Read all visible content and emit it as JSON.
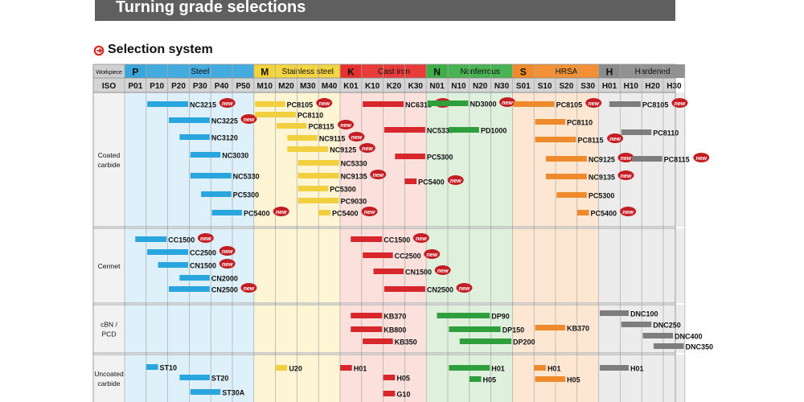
{
  "page": {
    "title": "Turning grade selections",
    "section_title": "Selection system",
    "workpiece_label": "Workpiece",
    "iso_label": "ISO"
  },
  "groups": [
    {
      "letter": "P",
      "name": "Steel",
      "color": "#3aa7dc",
      "light": "#def1fa",
      "codes": [
        "P01",
        "P10",
        "P20",
        "P30",
        "P40",
        "P50"
      ]
    },
    {
      "letter": "M",
      "name": "Stainless steel",
      "color": "#f3d33a",
      "light": "#fdf5d4",
      "codes": [
        "M10",
        "M20",
        "M30",
        "M40"
      ]
    },
    {
      "letter": "K",
      "name": "Cast iron",
      "color": "#e7312f",
      "light": "#fbe0db",
      "codes": [
        "K01",
        "K10",
        "K20",
        "K30"
      ]
    },
    {
      "letter": "N",
      "name": "Nonferrous",
      "color": "#3fae49",
      "light": "#dff0dd",
      "codes": [
        "N01",
        "N10",
        "N20",
        "N30"
      ]
    },
    {
      "letter": "S",
      "name": "HRSA",
      "color": "#f08a2b",
      "light": "#fde7d2",
      "codes": [
        "S01",
        "S10",
        "S20",
        "S30"
      ]
    },
    {
      "letter": "H",
      "name": "Hardened",
      "color": "#8c8c8c",
      "light": "#ececec",
      "codes": [
        "H01",
        "H10",
        "H20",
        "H30"
      ]
    }
  ],
  "categories": [
    {
      "name": "Coated carbide",
      "lines": [
        "Coated",
        "carbide"
      ]
    },
    {
      "name": "Cermet",
      "lines": [
        "Cermet"
      ]
    },
    {
      "name": "cBN / PCD",
      "lines": [
        "cBN /",
        "PCD"
      ]
    },
    {
      "name": "Uncoated carbide",
      "lines": [
        "Uncoated",
        "carbide"
      ]
    }
  ],
  "new_badge": "new",
  "bar_colors": {
    "P": "#2aa6df",
    "M": "#f2cf3e",
    "K": "#d7262c",
    "N": "#2e9f3c",
    "S": "#ef8a2c",
    "H": "#7d7d7d"
  },
  "grades": [
    {
      "group": "P",
      "name": "NC3215",
      "from": "P10",
      "to": "P20",
      "new": true
    },
    {
      "group": "P",
      "name": "NC3225",
      "from": "P20",
      "to": "P30",
      "new": true
    },
    {
      "group": "P",
      "name": "NC3120",
      "from": "P25",
      "to": "P30",
      "new": false
    },
    {
      "group": "P",
      "name": "NC3030",
      "from": "P30",
      "to": "P35",
      "new": false
    },
    {
      "group": "P",
      "name": "NC5330",
      "from": "P30",
      "to": "P40",
      "new": false
    },
    {
      "group": "P",
      "name": "PC5300",
      "from": "P35",
      "to": "P40",
      "new": false
    },
    {
      "group": "P",
      "name": "PC5400",
      "from": "P40",
      "to": "P45",
      "new": true
    },
    {
      "group": "M",
      "name": "PC8105",
      "from": "M10",
      "to": "M15",
      "new": true
    },
    {
      "group": "M",
      "name": "PC8110",
      "from": "M10",
      "to": "M20",
      "new": false
    },
    {
      "group": "M",
      "name": "PC8115",
      "from": "M20",
      "to": "M25",
      "new": true
    },
    {
      "group": "M",
      "name": "NC9115",
      "from": "M25",
      "to": "M30",
      "new": true
    },
    {
      "group": "M",
      "name": "NC9125",
      "from": "M25",
      "to": "M35",
      "new": true
    },
    {
      "group": "M",
      "name": "NC5330",
      "from": "M30",
      "to": "M40",
      "new": false
    },
    {
      "group": "M",
      "name": "NC9135",
      "from": "M30",
      "to": "M40",
      "new": true
    },
    {
      "group": "M",
      "name": "PC5300",
      "from": "M30",
      "to": "M35",
      "new": false
    },
    {
      "group": "M",
      "name": "PC9030",
      "from": "M30",
      "to": "M40",
      "new": false
    },
    {
      "group": "M",
      "name": "PC5400",
      "from": "M40",
      "to": "M40",
      "new": true
    },
    {
      "group": "K",
      "name": "NC6315",
      "from": "K10",
      "to": "K20",
      "new": true
    },
    {
      "group": "K",
      "name": "NC5330",
      "from": "K20",
      "to": "K30",
      "new": false
    },
    {
      "group": "K",
      "name": "PC5300",
      "from": "K25",
      "to": "K30",
      "new": false
    },
    {
      "group": "K",
      "name": "PC5400",
      "from": "K30",
      "to": "K30",
      "new": true
    },
    {
      "group": "N",
      "name": "ND3000",
      "from": "N01",
      "to": "N10",
      "new": true
    },
    {
      "group": "N",
      "name": "PD1000",
      "from": "N10",
      "to": "N15",
      "new": false
    },
    {
      "group": "S",
      "name": "PC8105",
      "from": "S01",
      "to": "S10",
      "new": true
    },
    {
      "group": "S",
      "name": "PC8110",
      "from": "S10",
      "to": "S15",
      "new": false
    },
    {
      "group": "S",
      "name": "PC8115",
      "from": "S10",
      "to": "S20",
      "new": true
    },
    {
      "group": "S",
      "name": "NC9125",
      "from": "S15",
      "to": "S25",
      "new": true
    },
    {
      "group": "S",
      "name": "NC9135",
      "from": "S15",
      "to": "S25",
      "new": true
    },
    {
      "group": "S",
      "name": "PC5300",
      "from": "S20",
      "to": "S25",
      "new": false
    },
    {
      "group": "S",
      "name": "PC5400",
      "from": "S30",
      "to": "S30",
      "new": true
    },
    {
      "group": "H",
      "name": "PC8105",
      "from": "H05",
      "to": "H10",
      "new": true
    },
    {
      "group": "H",
      "name": "PC8110",
      "from": "H10",
      "to": "H15",
      "new": false
    },
    {
      "group": "H",
      "name": "PC8115",
      "from": "H15",
      "to": "H20",
      "new": true
    },
    {
      "group": "P",
      "name": "CC1500",
      "from": "P05",
      "to": "P10",
      "new": true
    },
    {
      "group": "P",
      "name": "CC2500",
      "from": "P10",
      "to": "P20",
      "new": true
    },
    {
      "group": "P",
      "name": "CN1500",
      "from": "P15",
      "to": "P20",
      "new": true
    },
    {
      "group": "P",
      "name": "CN2000",
      "from": "P25",
      "to": "P30",
      "new": false
    },
    {
      "group": "P",
      "name": "CN2500",
      "from": "P20",
      "to": "P30",
      "new": true
    },
    {
      "group": "K",
      "name": "CC1500",
      "from": "K05",
      "to": "K10",
      "new": true
    },
    {
      "group": "K",
      "name": "CC2500",
      "from": "K10",
      "to": "K15",
      "new": true
    },
    {
      "group": "K",
      "name": "CN1500",
      "from": "K15",
      "to": "K20",
      "new": true
    },
    {
      "group": "K",
      "name": "CN2500",
      "from": "K20",
      "to": "K30",
      "new": true
    },
    {
      "group": "K",
      "name": "KB370",
      "from": "K05",
      "to": "K10",
      "new": false
    },
    {
      "group": "K",
      "name": "KB800",
      "from": "K05",
      "to": "K10",
      "new": false
    },
    {
      "group": "K",
      "name": "KB350",
      "from": "K10",
      "to": "K15",
      "new": false
    },
    {
      "group": "N",
      "name": "DP90",
      "from": "N05",
      "to": "N20",
      "new": false
    },
    {
      "group": "N",
      "name": "DP150",
      "from": "N10",
      "to": "N25",
      "new": false
    },
    {
      "group": "N",
      "name": "DP200",
      "from": "N15",
      "to": "N30",
      "new": false
    },
    {
      "group": "S",
      "name": "KB370",
      "from": "S10",
      "to": "S15",
      "new": false
    },
    {
      "group": "H",
      "name": "DNC100",
      "from": "H01",
      "to": "H05",
      "new": false
    },
    {
      "group": "H",
      "name": "DNC250",
      "from": "H10",
      "to": "H15",
      "new": false
    },
    {
      "group": "H",
      "name": "DNC400",
      "from": "H20",
      "to": "H25",
      "new": false
    },
    {
      "group": "H",
      "name": "DNC350",
      "from": "H25",
      "to": "H30",
      "new": false
    },
    {
      "group": "P",
      "name": "ST10",
      "from": "P10",
      "to": "P10",
      "new": false
    },
    {
      "group": "P",
      "name": "ST20",
      "from": "P25",
      "to": "P30",
      "new": false
    },
    {
      "group": "P",
      "name": "ST30A",
      "from": "P30",
      "to": "P35",
      "new": false
    },
    {
      "group": "M",
      "name": "U20",
      "from": "M20",
      "to": "M20",
      "new": false
    },
    {
      "group": "K",
      "name": "H01",
      "from": "K01",
      "to": "K01",
      "new": false
    },
    {
      "group": "K",
      "name": "H05",
      "from": "K20",
      "to": "K20",
      "new": false
    },
    {
      "group": "K",
      "name": "G10",
      "from": "K20",
      "to": "K20",
      "new": false
    },
    {
      "group": "N",
      "name": "H01",
      "from": "N10",
      "to": "N20",
      "new": false
    },
    {
      "group": "N",
      "name": "H05",
      "from": "N20",
      "to": "N20",
      "new": false
    },
    {
      "group": "S",
      "name": "H01",
      "from": "S10",
      "to": "S10",
      "new": false
    },
    {
      "group": "S",
      "name": "H05",
      "from": "S10",
      "to": "S15",
      "new": false
    },
    {
      "group": "H",
      "name": "H01",
      "from": "H01",
      "to": "H05",
      "new": false
    }
  ]
}
